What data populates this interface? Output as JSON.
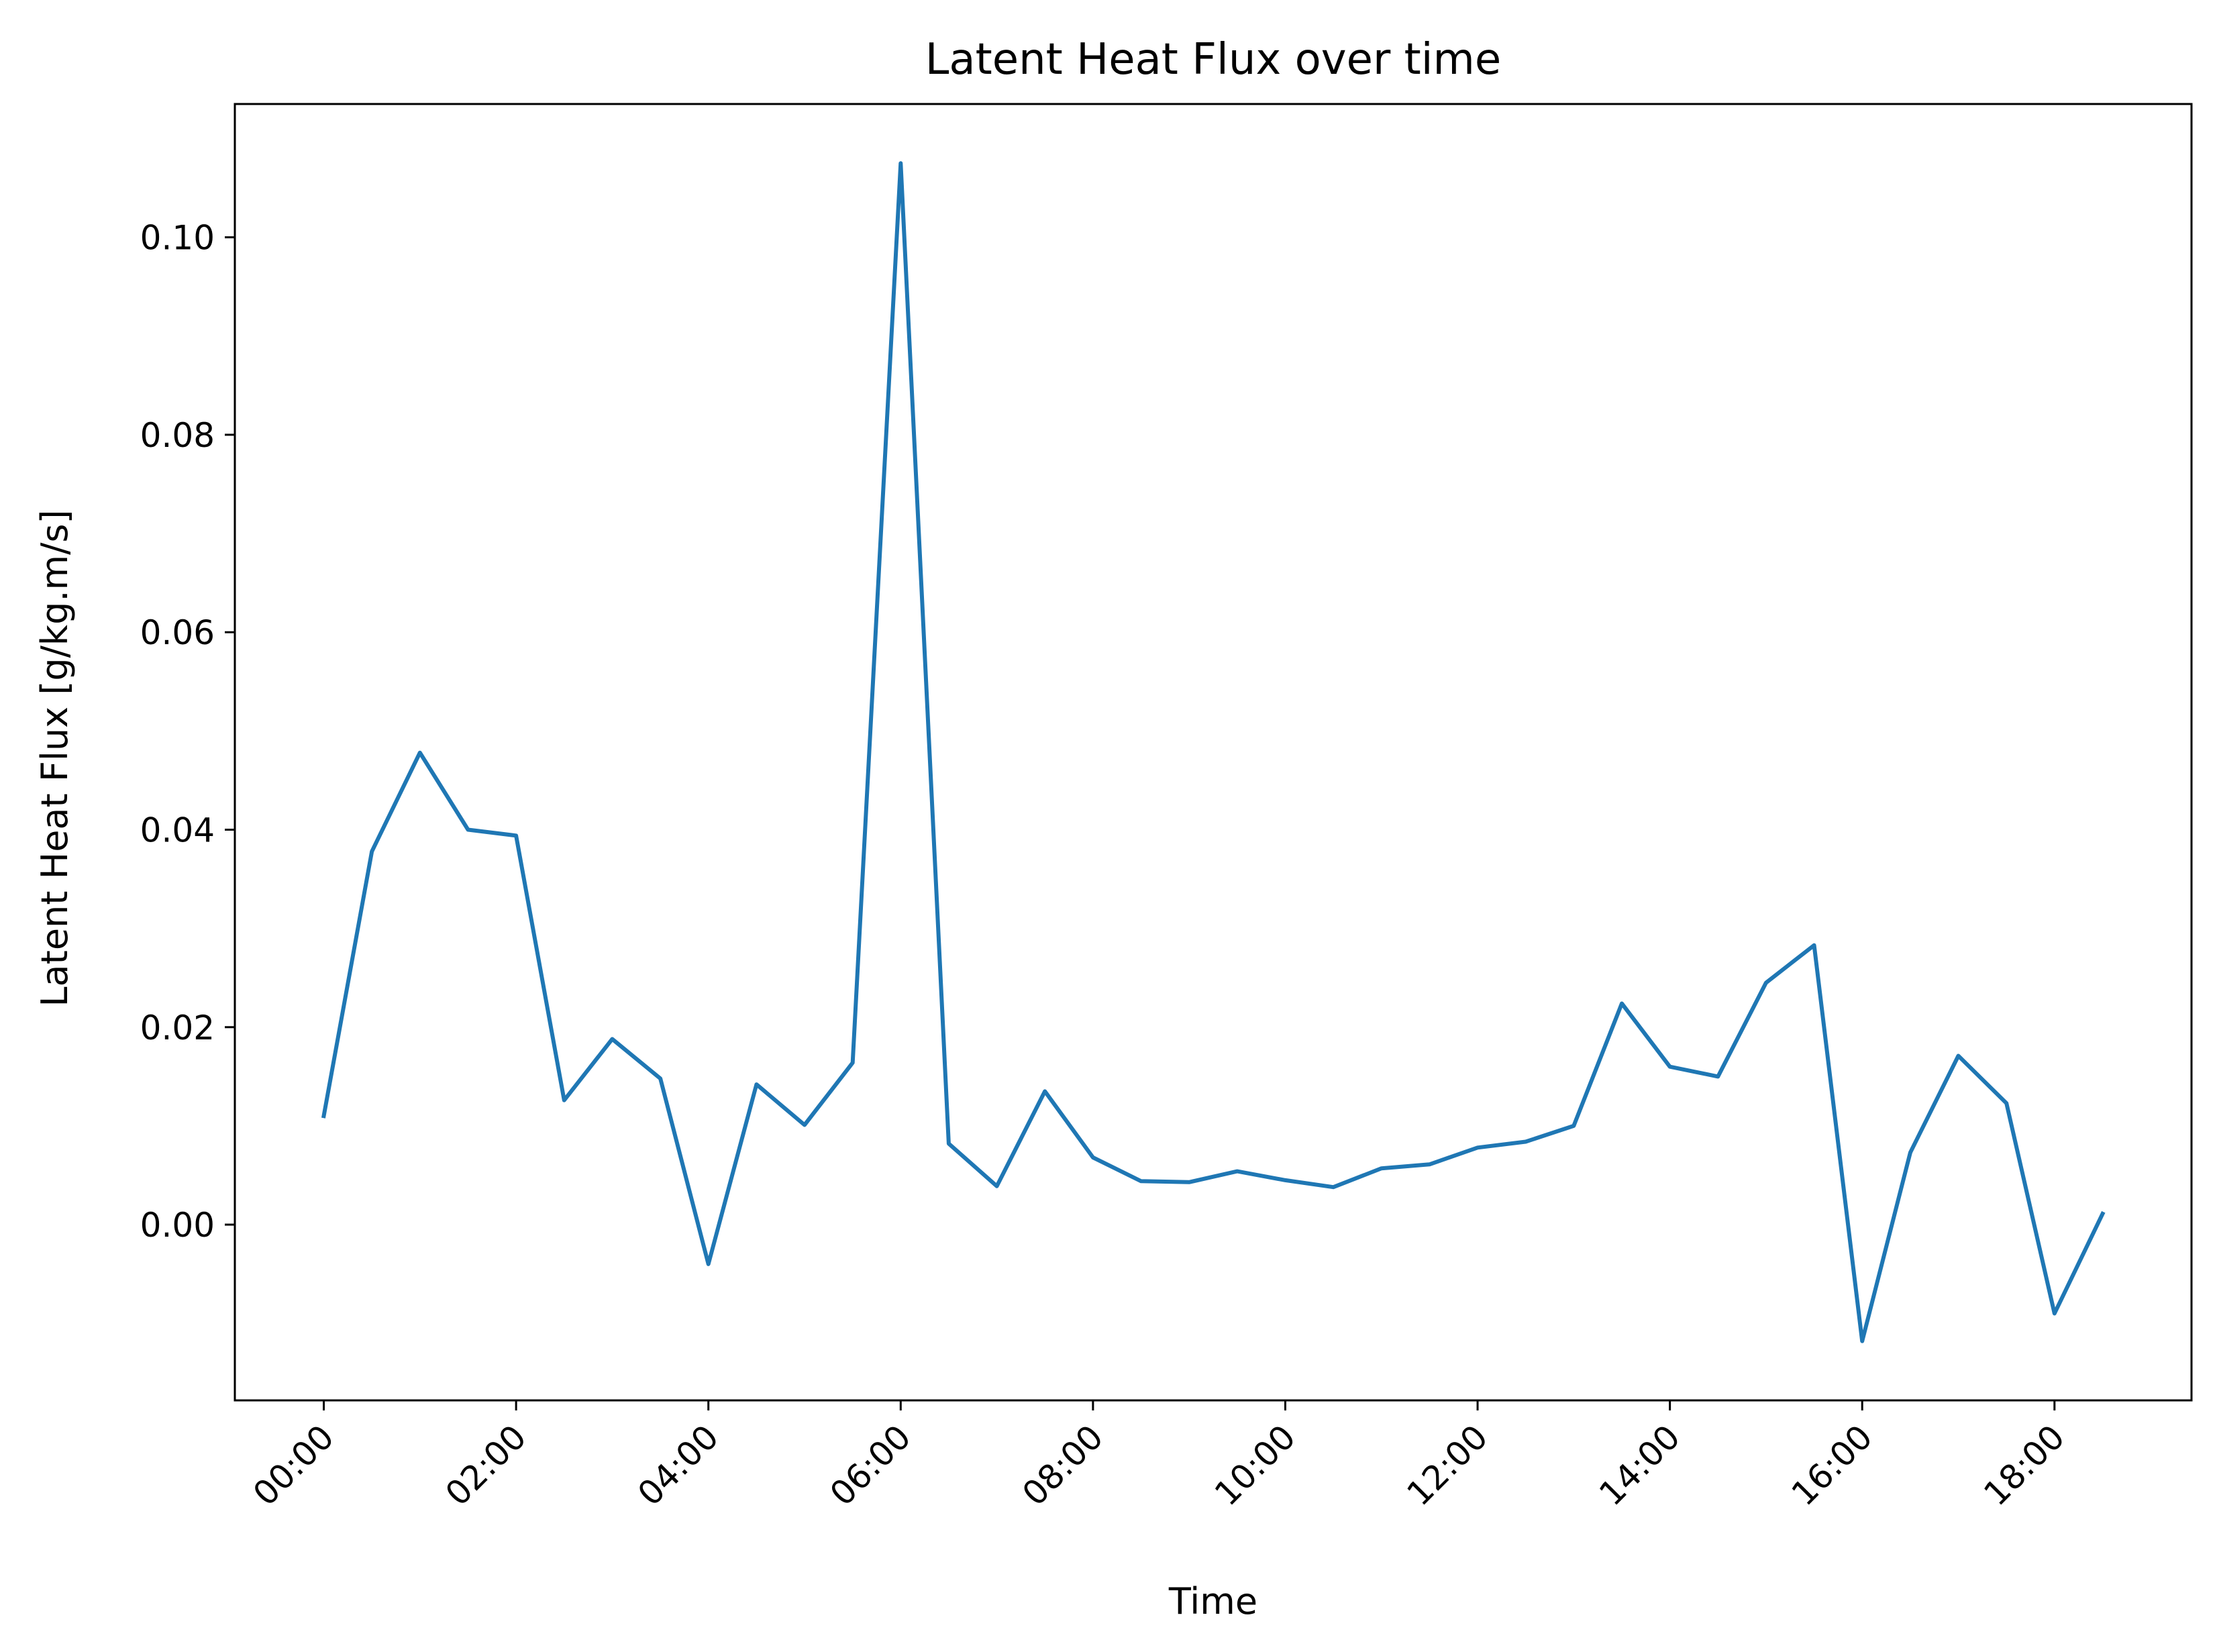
{
  "chart_data": {
    "type": "line",
    "title": "Latent Heat Flux over time",
    "xlabel": "Time",
    "ylabel": "Latent Heat Flux [g/kg.m/s]",
    "x_unit": "hours",
    "xlim": [
      -0.925,
      19.425
    ],
    "ylim": [
      -0.0178,
      0.1135
    ],
    "x_ticks": [
      0,
      2,
      4,
      6,
      8,
      10,
      12,
      14,
      16,
      18
    ],
    "x_tick_labels": [
      "00:00",
      "02:00",
      "04:00",
      "06:00",
      "08:00",
      "10:00",
      "12:00",
      "14:00",
      "16:00",
      "18:00"
    ],
    "y_ticks": [
      0.0,
      0.02,
      0.04,
      0.06,
      0.08,
      0.1
    ],
    "y_tick_labels": [
      "0.00",
      "0.02",
      "0.04",
      "0.06",
      "0.08",
      "0.10"
    ],
    "grid": false,
    "legend": false,
    "series": [
      {
        "color": "#1f77b4",
        "x": [
          "00:00",
          "00:30",
          "01:00",
          "01:30",
          "02:00",
          "02:30",
          "03:00",
          "03:30",
          "04:00",
          "04:30",
          "05:00",
          "05:30",
          "06:00",
          "06:30",
          "07:00",
          "07:30",
          "08:00",
          "08:30",
          "09:00",
          "09:30",
          "10:00",
          "10:30",
          "11:00",
          "11:30",
          "12:00",
          "12:30",
          "13:00",
          "13:30",
          "14:00",
          "14:30",
          "15:00",
          "15:30",
          "16:00",
          "16:30",
          "17:00",
          "17:30",
          "18:00",
          "18:30"
        ],
        "values": [
          0.011,
          0.0378,
          0.0478,
          0.04,
          0.0394,
          0.0126,
          0.0188,
          0.0148,
          -0.004,
          0.0142,
          0.0101,
          0.0164,
          0.1075,
          0.0082,
          0.0039,
          0.0135,
          0.0068,
          0.0044,
          0.0043,
          0.0054,
          0.0045,
          0.0038,
          0.0057,
          0.0061,
          0.0078,
          0.0084,
          0.01,
          0.0224,
          0.016,
          0.015,
          0.0245,
          0.0283,
          -0.0118,
          0.0073,
          0.0171,
          0.0123,
          -0.009,
          0.0011
        ]
      }
    ]
  }
}
